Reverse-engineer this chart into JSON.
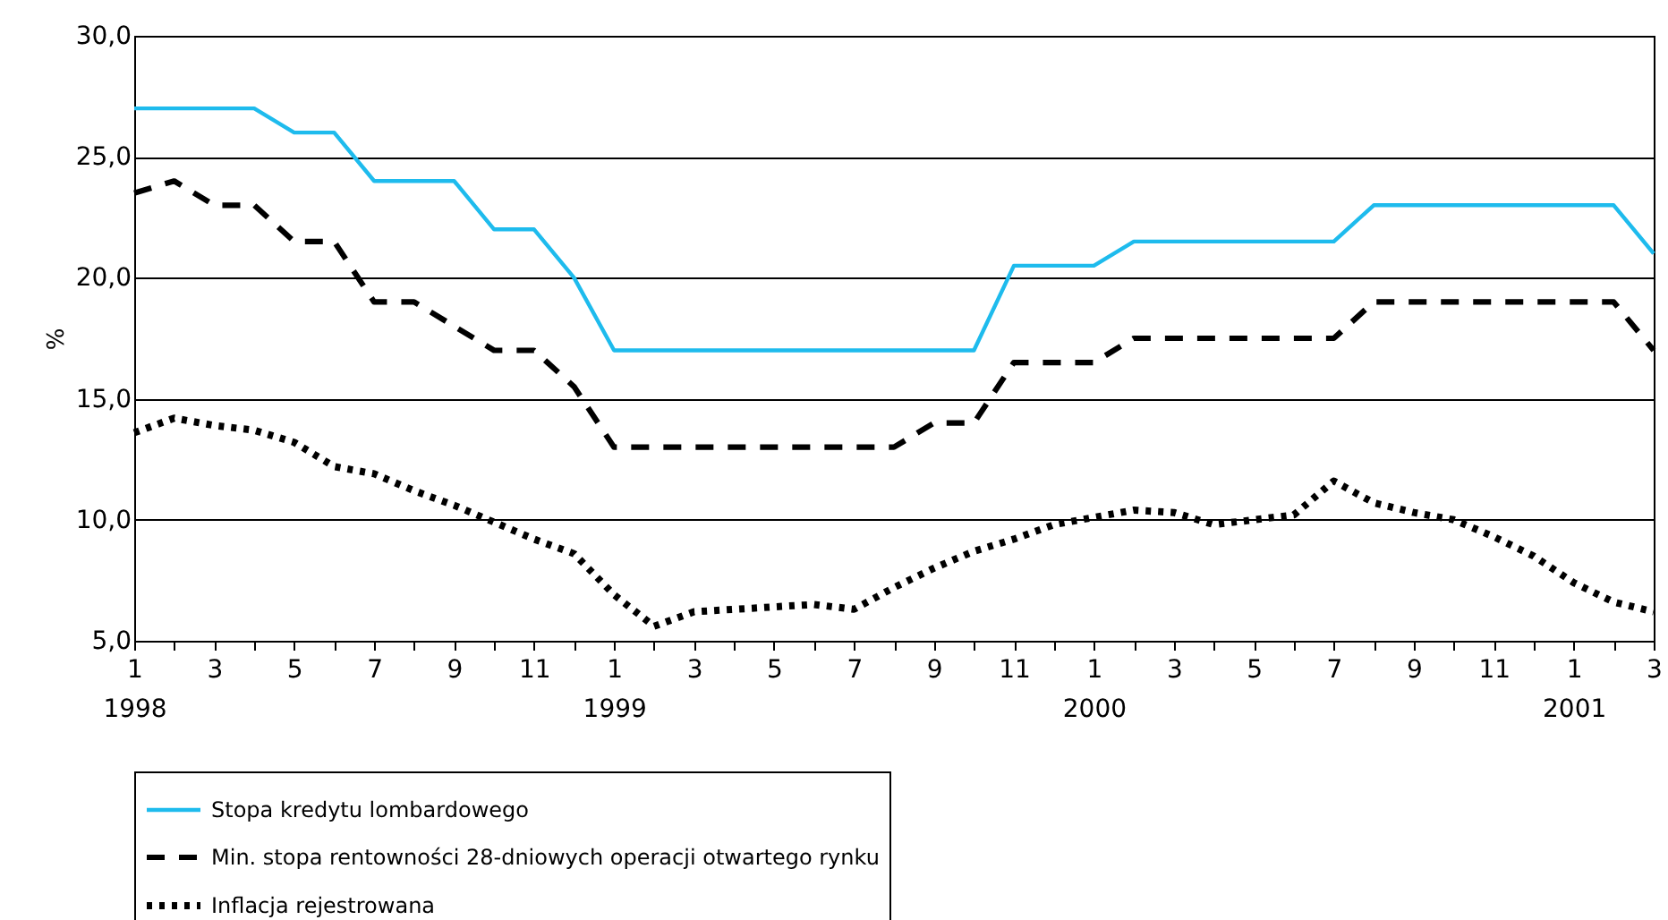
{
  "chart_data": {
    "type": "line",
    "ylabel": "%",
    "categories": [
      "1\n1998",
      null,
      "3",
      null,
      "5",
      null,
      "7",
      null,
      "9",
      null,
      "11",
      null,
      "1\n1999",
      null,
      "3",
      null,
      "5",
      null,
      "7",
      null,
      "9",
      null,
      "11",
      null,
      "1\n2000",
      null,
      "3",
      null,
      "5",
      null,
      "7",
      null,
      "9",
      null,
      "11",
      null,
      "1\n2001",
      null,
      "3"
    ],
    "series": [
      {
        "name": "Stopa kredytu lombardowego",
        "color": "#1ebbed",
        "line_style": "solid",
        "values": [
          27,
          27,
          27,
          27,
          26,
          26,
          24,
          24,
          24,
          22,
          22,
          20,
          17,
          17,
          17,
          17,
          17,
          17,
          17,
          17,
          17,
          17,
          20.5,
          20.5,
          20.5,
          21.5,
          21.5,
          21.5,
          21.5,
          21.5,
          21.5,
          23,
          23,
          23,
          23,
          23,
          23,
          23,
          21
        ]
      },
      {
        "name": "Min. stopa rentowności 28-dniowych operacji otwartego rynku",
        "color": "#000000",
        "line_style": "dashed",
        "values": [
          23.5,
          24,
          23,
          23,
          21.5,
          21.5,
          19,
          19,
          18,
          17,
          17,
          15.5,
          13,
          13,
          13,
          13,
          13,
          13,
          13,
          13,
          14,
          14,
          16.5,
          16.5,
          16.5,
          17.5,
          17.5,
          17.5,
          17.5,
          17.5,
          17.5,
          19,
          19,
          19,
          19,
          19,
          19,
          19,
          17
        ]
      },
      {
        "name": "Inflacja rejestrowana",
        "color": "#000000",
        "line_style": "dotted",
        "values": [
          13.6,
          14.2,
          13.9,
          13.7,
          13.2,
          12.2,
          11.9,
          11.2,
          10.6,
          9.9,
          9.2,
          8.6,
          6.9,
          5.6,
          6.2,
          6.3,
          6.4,
          6.5,
          6.3,
          7.2,
          8.0,
          8.7,
          9.2,
          9.8,
          10.1,
          10.4,
          10.3,
          9.8,
          10.0,
          10.2,
          11.6,
          10.7,
          10.3,
          10.0,
          9.3,
          8.5,
          7.4,
          6.6,
          6.2
        ]
      }
    ],
    "ylim": [
      5,
      30
    ],
    "yticks": [
      {
        "value": 5,
        "label": "5,0"
      },
      {
        "value": 10,
        "label": "10,0"
      },
      {
        "value": 15,
        "label": "15,0"
      },
      {
        "value": 20,
        "label": "20,0"
      },
      {
        "value": 25,
        "label": "25,0"
      },
      {
        "value": 30,
        "label": "30,0"
      }
    ],
    "grid": "y",
    "legend": "bottom",
    "marker": "none"
  }
}
